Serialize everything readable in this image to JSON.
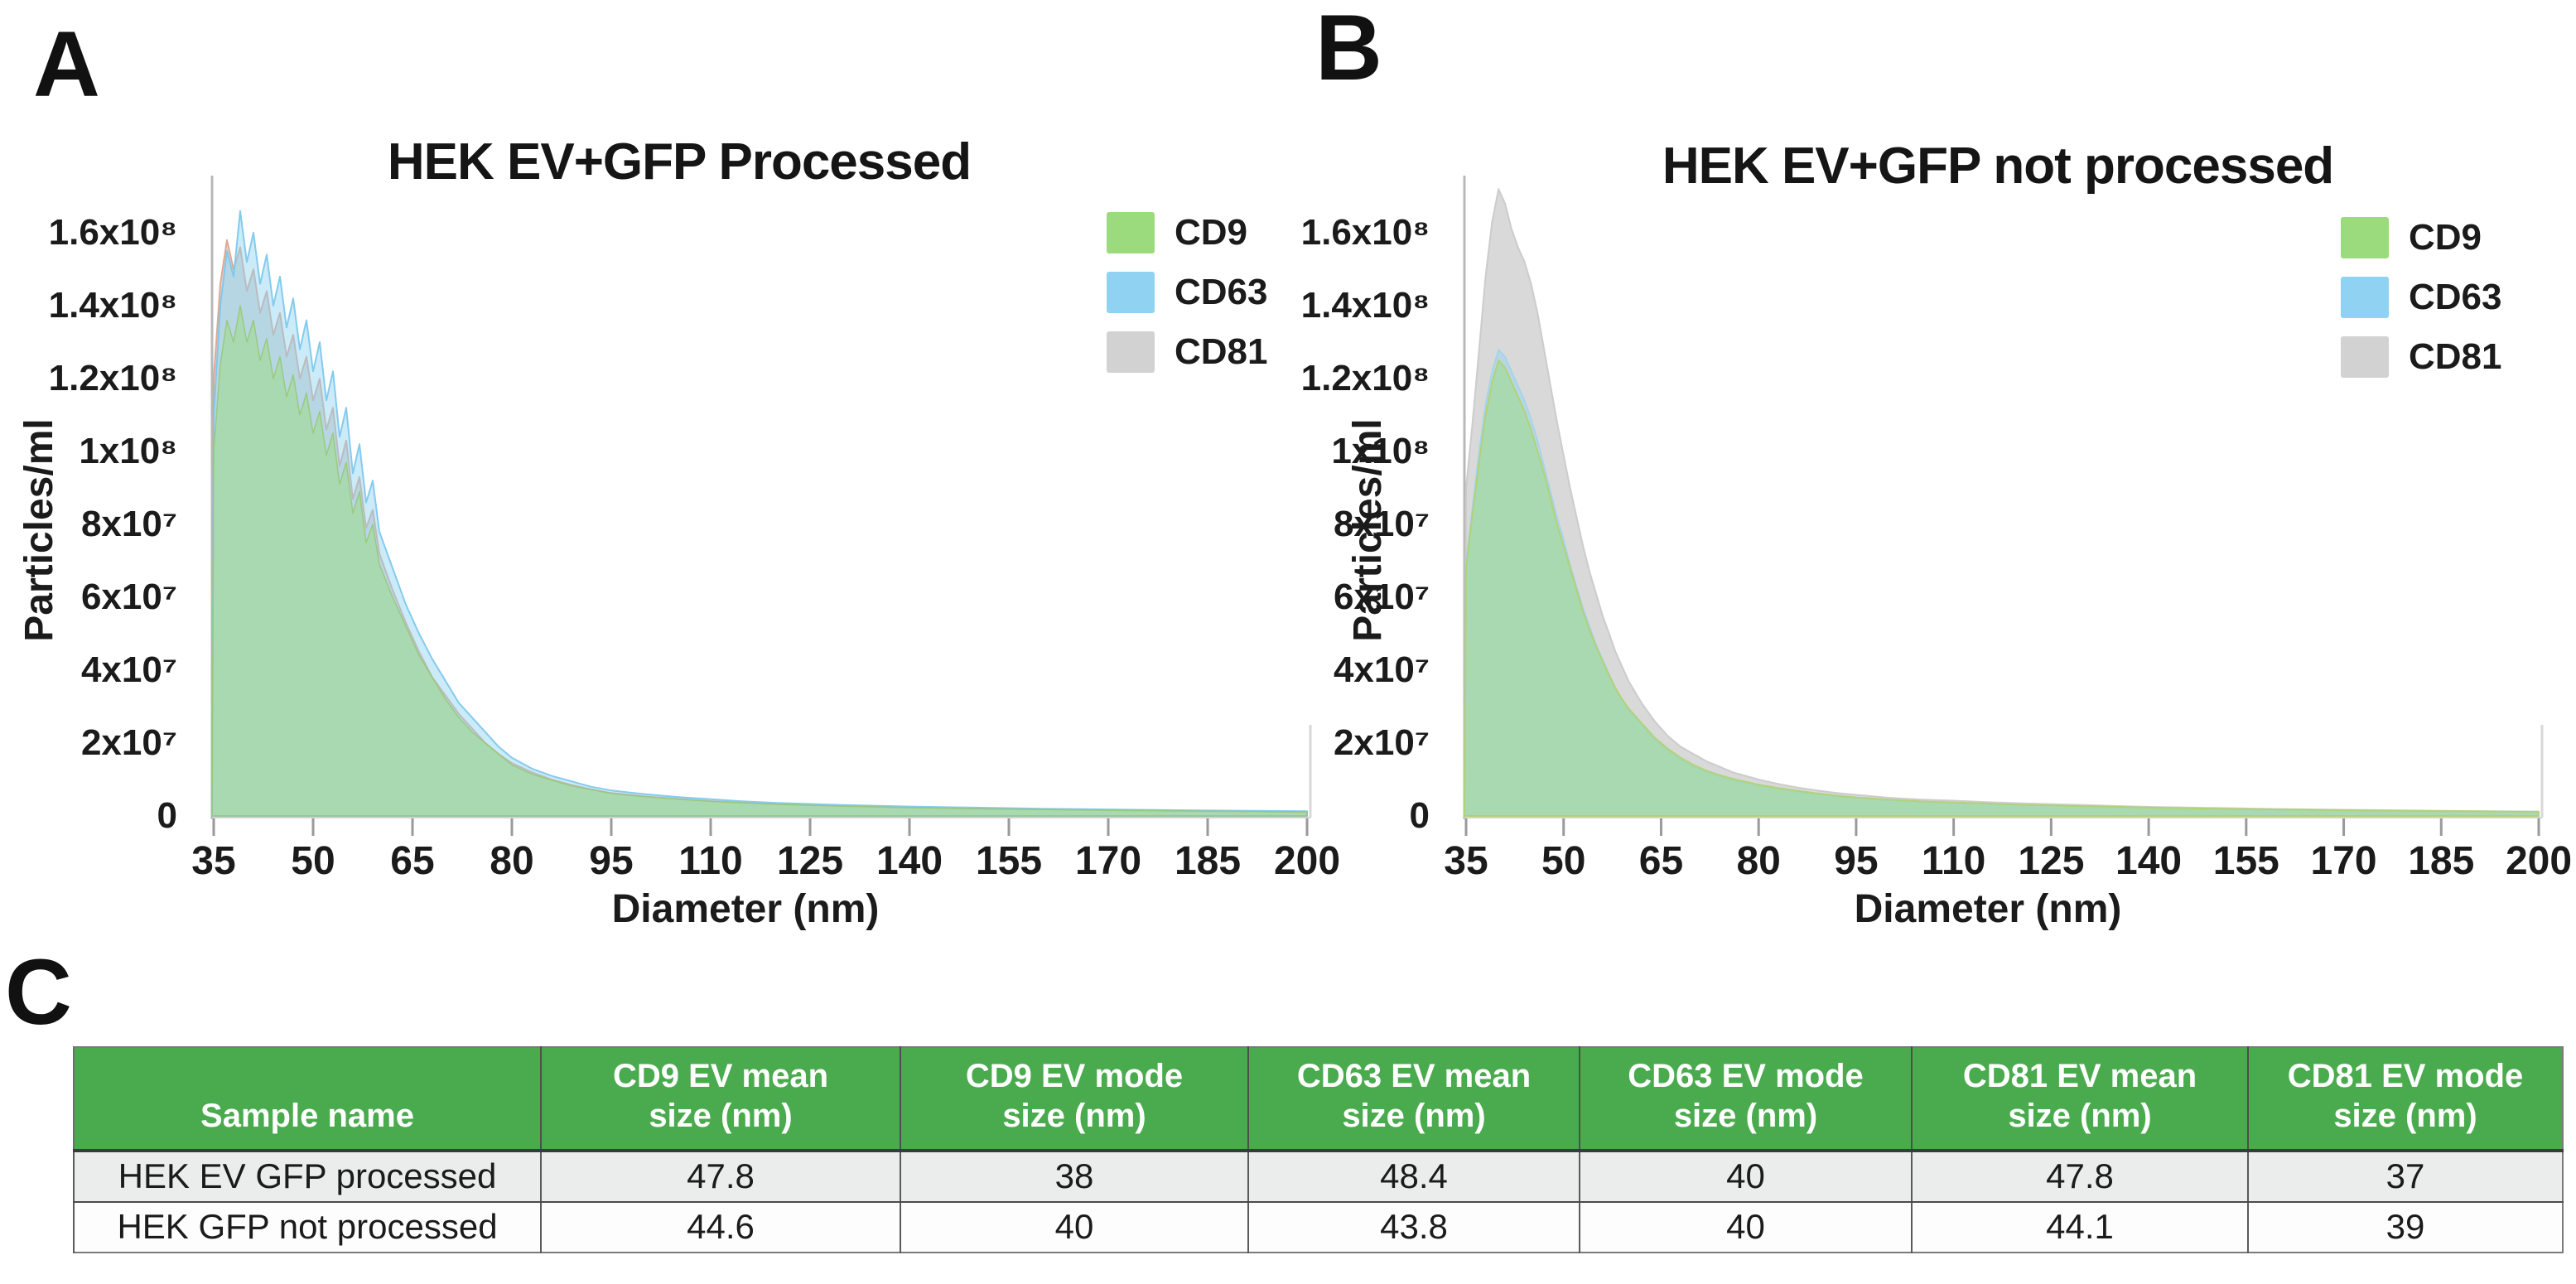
{
  "figure": {
    "background": "#ffffff",
    "panel_labels": {
      "a": "A",
      "b": "B",
      "c": "C"
    }
  },
  "chart_data": [
    {
      "id": "A",
      "type": "area",
      "title": "HEK EV+GFP Processed",
      "xlabel": "Diameter (nm)",
      "ylabel": "Particles/ml",
      "xlim": [
        35,
        200
      ],
      "ylim": [
        0,
        175000000
      ],
      "grid": false,
      "legend_position": "upper-right",
      "values_unit": "1e6 particles/ml",
      "x_ticks": [
        35,
        50,
        65,
        80,
        95,
        110,
        125,
        140,
        155,
        170,
        185,
        200
      ],
      "y_ticks": [
        "0",
        "2x10⁷",
        "4x10⁷",
        "6x10⁷",
        "8x10⁷",
        "1x10⁸",
        "1.2x10⁸",
        "1.4x10⁸",
        "1.6x10⁸"
      ],
      "y_tick_values": [
        0,
        20000000,
        40000000,
        60000000,
        80000000,
        100000000,
        120000000,
        140000000,
        160000000
      ],
      "x": [
        35,
        36,
        37,
        38,
        39,
        40,
        41,
        42,
        43,
        44,
        45,
        46,
        47,
        48,
        49,
        50,
        51,
        52,
        53,
        54,
        55,
        56,
        57,
        58,
        59,
        60,
        62,
        64,
        66,
        68,
        70,
        72,
        74,
        76,
        78,
        80,
        83,
        86,
        89,
        92,
        95,
        100,
        105,
        110,
        115,
        120,
        130,
        140,
        150,
        160,
        170,
        185,
        200
      ],
      "draw_order": [
        "CD81",
        "CD63",
        "CD9"
      ],
      "legend": [
        {
          "label": "CD9",
          "color": "#9cdb7d"
        },
        {
          "label": "CD63",
          "color": "#8fd2f2"
        },
        {
          "label": "CD81",
          "color": "#d2d2d2"
        }
      ],
      "series": [
        {
          "name": "CD9",
          "color": "#9cdb7d",
          "fill_opacity": 0.5,
          "stroke": "#98c877",
          "stroke_width": 1.5,
          "values": [
            100,
            124,
            136,
            130,
            140,
            130,
            136,
            125,
            131,
            120,
            126,
            115,
            121,
            110,
            116,
            105,
            111,
            99,
            105,
            91,
            97,
            83,
            89,
            75,
            80,
            69,
            60,
            52,
            44,
            38,
            32,
            27,
            23,
            20,
            17,
            14,
            11.5,
            9.8,
            8.3,
            7.2,
            6.2,
            5.3,
            4.6,
            4,
            3.6,
            3.2,
            2.7,
            2.3,
            2,
            1.8,
            1.6,
            1.3,
            1.1
          ]
        },
        {
          "name": "CD63",
          "color": "#8fd2f2",
          "fill_opacity": 0.45,
          "stroke": "#79c6ec",
          "stroke_width": 2,
          "values": [
            110,
            140,
            155,
            148,
            166,
            152,
            160,
            146,
            154,
            140,
            148,
            134,
            142,
            128,
            136,
            122,
            130,
            114,
            122,
            104,
            112,
            94,
            102,
            86,
            92,
            78,
            68,
            58,
            50,
            43,
            37,
            31,
            27,
            23,
            19,
            16,
            13,
            11,
            9.5,
            8,
            7,
            6,
            5.2,
            4.6,
            4,
            3.6,
            3,
            2.6,
            2.3,
            2,
            1.8,
            1.5,
            1.3
          ]
        },
        {
          "name": "CD81",
          "color": "#d2d2d2",
          "fill_opacity": 0.85,
          "stroke": "#dca28a",
          "stroke_width": 2,
          "values": [
            120,
            146,
            158,
            150,
            156,
            144,
            150,
            138,
            144,
            132,
            138,
            126,
            132,
            120,
            126,
            114,
            120,
            106,
            112,
            96,
            103,
            87,
            93,
            79,
            84,
            72,
            62,
            53,
            45,
            38,
            33,
            28,
            24,
            20,
            17,
            14.5,
            12,
            10,
            8.5,
            7.3,
            6.3,
            5.4,
            4.7,
            4.1,
            3.6,
            3.2,
            2.7,
            2.3,
            2,
            1.8,
            1.6,
            1.3,
            1.1
          ]
        }
      ]
    },
    {
      "id": "B",
      "type": "area",
      "title": "HEK EV+GFP not processed",
      "xlabel": "Diameter (nm)",
      "ylabel": "Particles/ml",
      "xlim": [
        35,
        200
      ],
      "ylim": [
        0,
        175000000
      ],
      "grid": false,
      "legend_position": "upper-right",
      "values_unit": "1e6 particles/ml",
      "x_ticks": [
        35,
        50,
        65,
        80,
        95,
        110,
        125,
        140,
        155,
        170,
        185,
        200
      ],
      "y_ticks": [
        "0",
        "2x10⁷",
        "4x10⁷",
        "6x10⁷",
        "8x10⁷",
        "1x10⁸",
        "1.2x10⁸",
        "1.4x10⁸",
        "1.6x10⁸"
      ],
      "y_tick_values": [
        0,
        20000000,
        40000000,
        60000000,
        80000000,
        100000000,
        120000000,
        140000000,
        160000000
      ],
      "x": [
        35,
        36,
        37,
        38,
        39,
        40,
        41,
        42,
        43,
        44,
        45,
        46,
        47,
        48,
        49,
        50,
        51,
        52,
        53,
        54,
        55,
        56,
        57,
        58,
        59,
        60,
        62,
        64,
        66,
        68,
        70,
        72,
        74,
        76,
        78,
        80,
        83,
        86,
        89,
        92,
        95,
        100,
        105,
        110,
        115,
        120,
        130,
        140,
        150,
        160,
        170,
        185,
        200
      ],
      "draw_order": [
        "CD81",
        "CD63",
        "CD9"
      ],
      "legend": [
        {
          "label": "CD9",
          "color": "#9cdb7d"
        },
        {
          "label": "CD63",
          "color": "#8fd2f2"
        },
        {
          "label": "CD81",
          "color": "#d2d2d2"
        }
      ],
      "series": [
        {
          "name": "CD9",
          "color": "#9cdb7d",
          "fill_opacity": 0.5,
          "stroke": "#b2d16e",
          "stroke_width": 2,
          "values": [
            68,
            83,
            97,
            110,
            119,
            125,
            123,
            119,
            115,
            111,
            106,
            100,
            94,
            87,
            80,
            74,
            68,
            62,
            56,
            51,
            46.5,
            42.5,
            38.5,
            35,
            32,
            29.5,
            25.5,
            21.5,
            18.5,
            16,
            14,
            12.4,
            11.2,
            10.2,
            9.4,
            8.6,
            7.7,
            6.9,
            6.2,
            5.6,
            5.1,
            4.5,
            4,
            3.7,
            3.4,
            3.1,
            2.7,
            2.3,
            2,
            1.8,
            1.6,
            1.35,
            1.15
          ]
        },
        {
          "name": "CD63",
          "color": "#8fd2f2",
          "fill_opacity": 0.45,
          "stroke": "#9ad4ef",
          "stroke_width": 1.5,
          "values": [
            70,
            85,
            100,
            113,
            122,
            128,
            126,
            122,
            118,
            114,
            109,
            103,
            96,
            89,
            82,
            76,
            69,
            63,
            57,
            52,
            47,
            43,
            39,
            35,
            32,
            29,
            25,
            21,
            18,
            15.5,
            13.5,
            12,
            10.8,
            9.8,
            9,
            8.3,
            7.4,
            6.6,
            6,
            5.4,
            4.9,
            4.3,
            3.9,
            3.6,
            3.3,
            3,
            2.6,
            2.2,
            1.9,
            1.7,
            1.5,
            1.3,
            1.1
          ]
        },
        {
          "name": "CD81",
          "color": "#d2d2d2",
          "fill_opacity": 0.85,
          "stroke": "#c9c9c9",
          "stroke_width": 2,
          "values": [
            90,
            108,
            128,
            148,
            163,
            172,
            168,
            161,
            156,
            152,
            146,
            138,
            128,
            118,
            108,
            99,
            90,
            82,
            74,
            67,
            61,
            55,
            50,
            45,
            41,
            37,
            31,
            26,
            22,
            19,
            17,
            15,
            13.5,
            12,
            11,
            10,
            8.8,
            7.8,
            7,
            6.3,
            5.8,
            5,
            4.5,
            4.2,
            3.8,
            3.5,
            3,
            2.5,
            2.2,
            1.9,
            1.7,
            1.4,
            1.2
          ]
        }
      ]
    },
    {
      "id": "C",
      "type": "table",
      "header_bg": "#4aab4e",
      "header_text_color": "#ffffff",
      "row_colors": [
        "#ebedec",
        "#fdfdfd"
      ],
      "columns": [
        "Sample name",
        "CD9 EV mean\nsize (nm)",
        "CD9 EV mode\nsize (nm)",
        "CD63 EV mean\nsize (nm)",
        "CD63 EV mode\nsize (nm)",
        "CD81 EV mean\nsize (nm)",
        "CD81 EV mode\nsize (nm)"
      ],
      "rows": [
        [
          "HEK EV GFP processed",
          "47.8",
          "38",
          "48.4",
          "40",
          "47.8",
          "37"
        ],
        [
          "HEK GFP not processed",
          "44.6",
          "40",
          "43.8",
          "40",
          "44.1",
          "39"
        ]
      ]
    }
  ]
}
